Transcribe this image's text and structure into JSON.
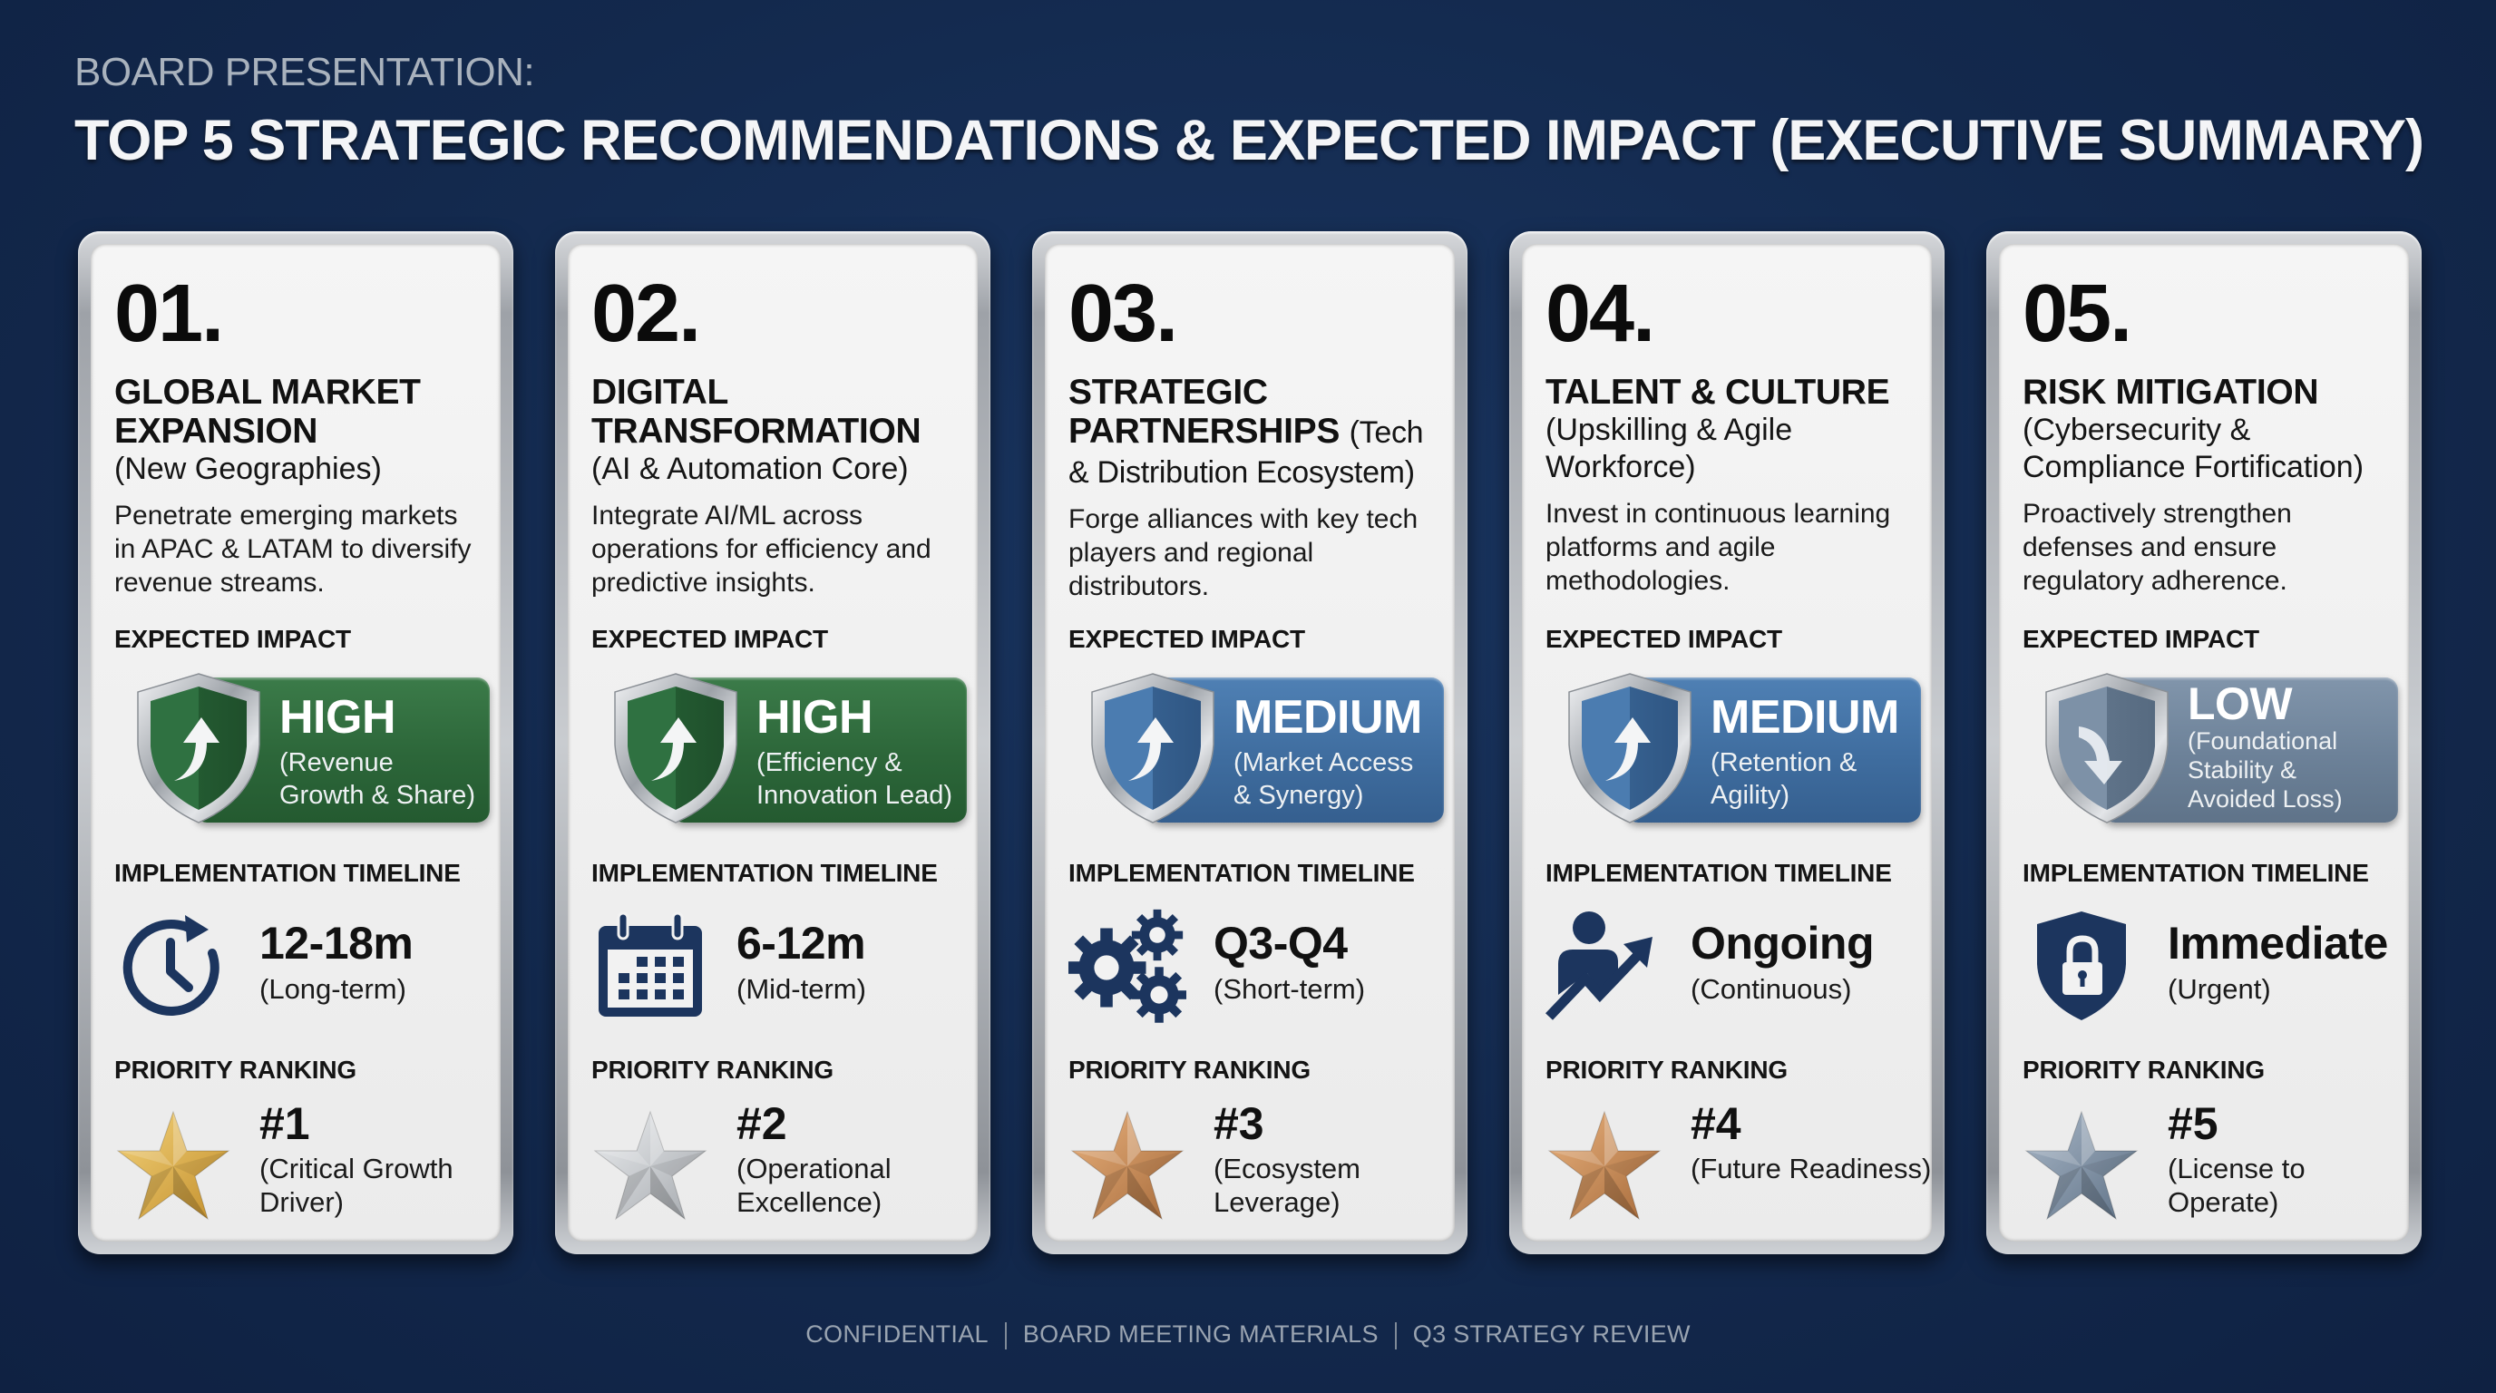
{
  "header": {
    "eyebrow": "BOARD PRESENTATION:",
    "title": "TOP 5 STRATEGIC RECOMMENDATIONS & EXPECTED IMPACT (EXECUTIVE SUMMARY)"
  },
  "labels": {
    "impact": "EXPECTED IMPACT",
    "timeline": "IMPLEMENTATION TIMELINE",
    "priority": "PRIORITY RANKING"
  },
  "colors": {
    "background": "#13294d",
    "impact_high": "#2f6b3d",
    "impact_medium": "#3c6a9c",
    "impact_low": "#6a7f96",
    "icon_navy": "#1c355e",
    "star_gold": "#d9a941",
    "star_silver": "#b9bcc0",
    "star_bronze": "#c58a55",
    "star_steel": "#7a8da3"
  },
  "cards": [
    {
      "number": "01.",
      "title": "GLOBAL MARKET EXPANSION",
      "subtitle": "(New Geographies)",
      "description": "Penetrate emerging markets in APAC & LATAM to diversify revenue streams.",
      "impact": {
        "level": "HIGH",
        "detail": "(Revenue Growth & Share)",
        "icon": "shield-arrow-up-icon"
      },
      "timeline": {
        "value": "12-18m",
        "note": "(Long-term)",
        "icon": "clock-refresh-icon"
      },
      "priority": {
        "rank": "#1",
        "note": "(Critical Growth Driver)",
        "icon": "gold-star-icon"
      }
    },
    {
      "number": "02.",
      "title": "DIGITAL TRANSFORMATION",
      "subtitle": "(AI & Automation Core)",
      "description": "Integrate AI/ML across operations for efficiency and predictive insights.",
      "impact": {
        "level": "HIGH",
        "detail": "(Efficiency & Innovation Lead)",
        "icon": "shield-arrow-up-icon"
      },
      "timeline": {
        "value": "6-12m",
        "note": "(Mid-term)",
        "icon": "calendar-icon"
      },
      "priority": {
        "rank": "#2",
        "note": "(Operational Excellence)",
        "icon": "silver-star-icon"
      }
    },
    {
      "number": "03.",
      "title": "STRATEGIC PARTNERSHIPS",
      "subtitle": "(Tech & Distribution Ecosystem)",
      "description": "Forge alliances with key tech players and regional distributors.",
      "impact": {
        "level": "MEDIUM",
        "detail": "(Market Access & Synergy)",
        "icon": "shield-arrow-up-icon"
      },
      "timeline": {
        "value": "Q3-Q4",
        "note": "(Short-term)",
        "icon": "gears-icon"
      },
      "priority": {
        "rank": "#3",
        "note": "(Ecosystem Leverage)",
        "icon": "bronze-star-icon"
      }
    },
    {
      "number": "04.",
      "title": "TALENT & CULTURE",
      "subtitle": "(Upskilling & Agile Workforce)",
      "description": "Invest in continuous learning platforms and agile methodologies.",
      "impact": {
        "level": "MEDIUM",
        "detail": "(Retention & Agility)",
        "icon": "shield-arrow-up-icon"
      },
      "timeline": {
        "value": "Ongoing",
        "note": "(Continuous)",
        "icon": "person-growth-icon"
      },
      "priority": {
        "rank": "#4",
        "note": "(Future Readiness)",
        "icon": "bronze-star-icon"
      }
    },
    {
      "number": "05.",
      "title": "RISK MITIGATION",
      "subtitle": "(Cybersecurity & Compliance Fortification)",
      "description": "Proactively strengthen defenses and ensure regulatory adherence.",
      "impact": {
        "level": "LOW",
        "detail": "(Foundational Stability & Avoided Loss)",
        "icon": "shield-arrow-down-icon"
      },
      "timeline": {
        "value": "Immediate",
        "note": "(Urgent)",
        "icon": "shield-lock-icon"
      },
      "priority": {
        "rank": "#5",
        "note": "(License to Operate)",
        "icon": "steel-star-icon"
      }
    }
  ],
  "footer": {
    "items": [
      "CONFIDENTIAL",
      "BOARD MEETING MATERIALS",
      "Q3 STRATEGY REVIEW"
    ]
  }
}
